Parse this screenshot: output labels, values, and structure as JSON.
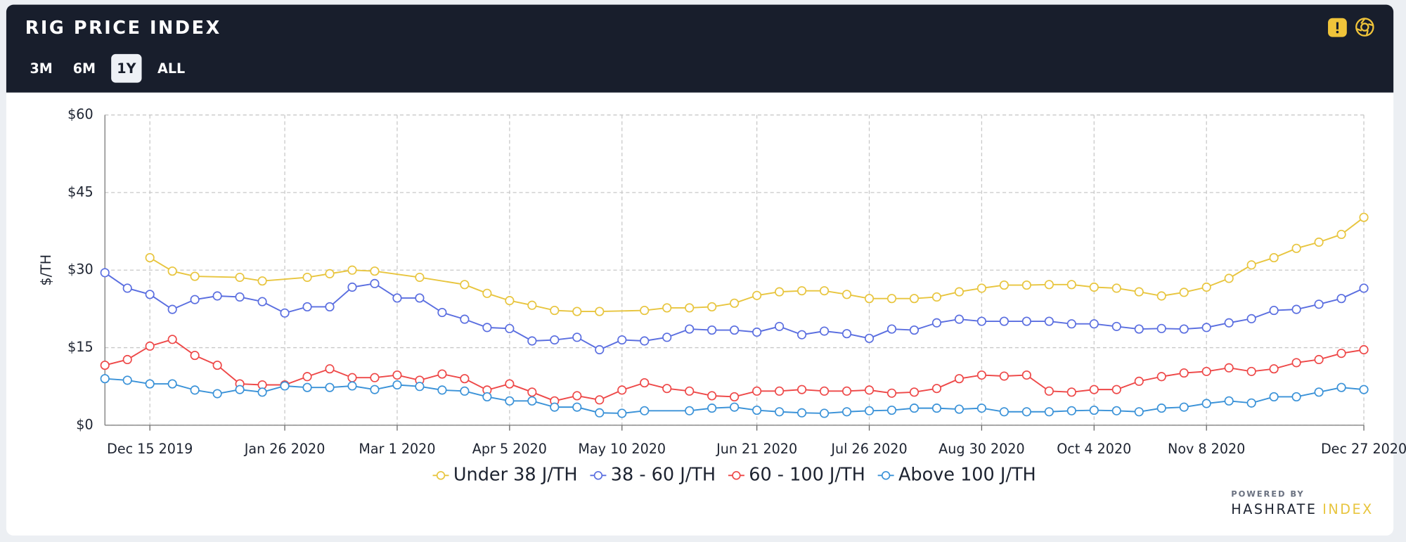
{
  "title": "RIG PRICE INDEX",
  "range_buttons": [
    "3M",
    "6M",
    "1Y",
    "ALL"
  ],
  "selected_range": "1Y",
  "footer": {
    "powered_by": "POWERED BY",
    "brand": "HASHRATE",
    "brand_accent": "INDEX"
  },
  "chart_data": {
    "type": "line",
    "y_label": "$/TH",
    "grid": true,
    "ylim": [
      0,
      60
    ],
    "yticks": [
      {
        "value": 0,
        "label": "$0"
      },
      {
        "value": 15,
        "label": "$15"
      },
      {
        "value": 30,
        "label": "$30"
      },
      {
        "value": 45,
        "label": "$45"
      },
      {
        "value": 60,
        "label": "$60"
      }
    ],
    "xlim": [
      "2019-12-01",
      "2020-12-27"
    ],
    "xticks": [
      {
        "value": "2019-12-15",
        "label": "Dec 15 2019"
      },
      {
        "value": "2020-01-26",
        "label": "Jan 26 2020"
      },
      {
        "value": "2020-03-01",
        "label": "Mar 1 2020"
      },
      {
        "value": "2020-04-05",
        "label": "Apr 5 2020"
      },
      {
        "value": "2020-05-10",
        "label": "May 10 2020"
      },
      {
        "value": "2020-06-21",
        "label": "Jun 21 2020"
      },
      {
        "value": "2020-07-26",
        "label": "Jul 26 2020"
      },
      {
        "value": "2020-08-30",
        "label": "Aug 30 2020"
      },
      {
        "value": "2020-10-04",
        "label": "Oct 4 2020"
      },
      {
        "value": "2020-11-08",
        "label": "Nov 8 2020"
      },
      {
        "value": "2020-12-27",
        "label": "Dec 27 2020"
      }
    ],
    "x": [
      "2019-12-01",
      "2019-12-08",
      "2019-12-15",
      "2019-12-22",
      "2019-12-29",
      "2020-01-05",
      "2020-01-12",
      "2020-01-19",
      "2020-01-26",
      "2020-02-02",
      "2020-02-09",
      "2020-02-16",
      "2020-02-23",
      "2020-03-01",
      "2020-03-08",
      "2020-03-15",
      "2020-03-22",
      "2020-03-29",
      "2020-04-05",
      "2020-04-12",
      "2020-04-19",
      "2020-04-26",
      "2020-05-03",
      "2020-05-10",
      "2020-05-17",
      "2020-05-24",
      "2020-05-31",
      "2020-06-07",
      "2020-06-14",
      "2020-06-21",
      "2020-06-28",
      "2020-07-05",
      "2020-07-12",
      "2020-07-19",
      "2020-07-26",
      "2020-08-02",
      "2020-08-09",
      "2020-08-16",
      "2020-08-23",
      "2020-08-30",
      "2020-09-06",
      "2020-09-13",
      "2020-09-20",
      "2020-09-27",
      "2020-10-04",
      "2020-10-11",
      "2020-10-18",
      "2020-10-25",
      "2020-11-01",
      "2020-11-08",
      "2020-11-15",
      "2020-11-22",
      "2020-11-29",
      "2020-12-06",
      "2020-12-13",
      "2020-12-20",
      "2020-12-27"
    ],
    "legend": "bottom",
    "series": [
      {
        "name": "Under 38 J/TH",
        "color": "#e8c53e",
        "x": [
          "2019-12-15",
          "2019-12-22",
          "2019-12-29",
          "2020-01-12",
          "2020-01-19",
          "2020-02-02",
          "2020-02-09",
          "2020-02-16",
          "2020-02-23",
          "2020-03-08",
          "2020-03-22",
          "2020-03-29",
          "2020-04-05",
          "2020-04-12",
          "2020-04-19",
          "2020-04-26",
          "2020-05-03",
          "2020-05-17",
          "2020-05-24",
          "2020-05-31",
          "2020-06-07",
          "2020-06-14",
          "2020-06-21",
          "2020-06-28",
          "2020-07-05",
          "2020-07-12",
          "2020-07-19",
          "2020-07-26",
          "2020-08-02",
          "2020-08-09",
          "2020-08-16",
          "2020-08-23",
          "2020-08-30",
          "2020-09-06",
          "2020-09-13",
          "2020-09-20",
          "2020-09-27",
          "2020-10-04",
          "2020-10-11",
          "2020-10-18",
          "2020-10-25",
          "2020-11-01",
          "2020-11-08",
          "2020-11-15",
          "2020-11-22",
          "2020-11-29",
          "2020-12-06",
          "2020-12-13",
          "2020-12-20",
          "2020-12-27"
        ],
        "values": [
          32.4,
          29.8,
          28.8,
          28.6,
          27.9,
          28.6,
          29.3,
          30.0,
          29.8,
          28.6,
          27.2,
          25.5,
          24.1,
          23.2,
          22.2,
          22.0,
          22.0,
          22.2,
          22.7,
          22.7,
          22.9,
          23.6,
          25.1,
          25.8,
          26.0,
          26.0,
          25.3,
          24.5,
          24.5,
          24.5,
          24.8,
          25.8,
          26.5,
          27.1,
          27.1,
          27.2,
          27.2,
          26.7,
          26.5,
          25.8,
          25.0,
          25.7,
          26.7,
          28.4,
          31.0,
          32.4,
          34.2,
          35.4,
          36.9,
          40.2
        ]
      },
      {
        "name": "38 - 60 J/TH",
        "color": "#5a6ee0",
        "values": [
          29.5,
          26.5,
          25.3,
          22.4,
          24.3,
          25.0,
          24.8,
          23.9,
          21.7,
          22.9,
          22.9,
          26.7,
          27.4,
          24.6,
          24.6,
          21.8,
          20.5,
          18.9,
          18.7,
          16.3,
          16.5,
          17.0,
          14.6,
          16.5,
          16.3,
          17.0,
          18.6,
          18.4,
          18.4,
          18.0,
          19.1,
          17.5,
          18.2,
          17.7,
          16.8,
          18.6,
          18.4,
          19.8,
          20.5,
          20.1,
          20.1,
          20.1,
          20.1,
          19.6,
          19.6,
          19.1,
          18.6,
          18.7,
          18.6,
          18.9,
          19.8,
          20.6,
          22.2,
          22.4,
          23.4,
          24.5,
          26.5
        ]
      },
      {
        "name": "60 - 100 J/TH",
        "color": "#ee4848",
        "values": [
          11.6,
          12.7,
          15.3,
          16.6,
          13.5,
          11.6,
          8.0,
          7.8,
          7.8,
          9.4,
          10.9,
          9.2,
          9.2,
          9.7,
          8.7,
          9.9,
          9.0,
          6.8,
          8.0,
          6.4,
          4.7,
          5.7,
          4.9,
          6.8,
          8.2,
          7.1,
          6.6,
          5.7,
          5.5,
          6.6,
          6.6,
          6.9,
          6.6,
          6.6,
          6.8,
          6.2,
          6.4,
          7.1,
          9.0,
          9.7,
          9.5,
          9.7,
          6.6,
          6.4,
          6.9,
          6.9,
          8.5,
          9.4,
          10.1,
          10.4,
          11.1,
          10.4,
          10.9,
          12.1,
          12.7,
          13.9,
          14.6
        ]
      },
      {
        "name": "Above 100 J/TH",
        "color": "#3a92d8",
        "x": [
          "2019-12-01",
          "2019-12-08",
          "2019-12-15",
          "2019-12-22",
          "2019-12-29",
          "2020-01-05",
          "2020-01-12",
          "2020-01-19",
          "2020-01-26",
          "2020-02-02",
          "2020-02-09",
          "2020-02-16",
          "2020-02-23",
          "2020-03-01",
          "2020-03-08",
          "2020-03-15",
          "2020-03-22",
          "2020-03-29",
          "2020-04-05",
          "2020-04-12",
          "2020-04-19",
          "2020-04-26",
          "2020-05-03",
          "2020-05-10",
          "2020-05-17",
          "2020-05-31",
          "2020-06-07",
          "2020-06-14",
          "2020-06-21",
          "2020-06-28",
          "2020-07-05",
          "2020-07-12",
          "2020-07-19",
          "2020-07-26",
          "2020-08-02",
          "2020-08-09",
          "2020-08-16",
          "2020-08-23",
          "2020-08-30",
          "2020-09-06",
          "2020-09-13",
          "2020-09-20",
          "2020-09-27",
          "2020-10-04",
          "2020-10-11",
          "2020-10-18",
          "2020-10-25",
          "2020-11-01",
          "2020-11-08",
          "2020-11-15",
          "2020-11-22",
          "2020-11-29",
          "2020-12-06",
          "2020-12-13",
          "2020-12-20",
          "2020-12-27"
        ],
        "values": [
          9.0,
          8.7,
          8.0,
          8.0,
          6.8,
          6.1,
          6.9,
          6.4,
          7.6,
          7.3,
          7.3,
          7.6,
          6.9,
          7.8,
          7.5,
          6.8,
          6.6,
          5.5,
          4.7,
          4.7,
          3.5,
          3.5,
          2.4,
          2.3,
          2.8,
          2.8,
          3.3,
          3.5,
          2.9,
          2.6,
          2.4,
          2.3,
          2.6,
          2.8,
          2.9,
          3.3,
          3.3,
          3.1,
          3.3,
          2.6,
          2.6,
          2.6,
          2.8,
          2.9,
          2.8,
          2.6,
          3.3,
          3.5,
          4.2,
          4.7,
          4.3,
          5.5,
          5.5,
          6.4,
          7.3,
          6.9
        ]
      }
    ]
  }
}
